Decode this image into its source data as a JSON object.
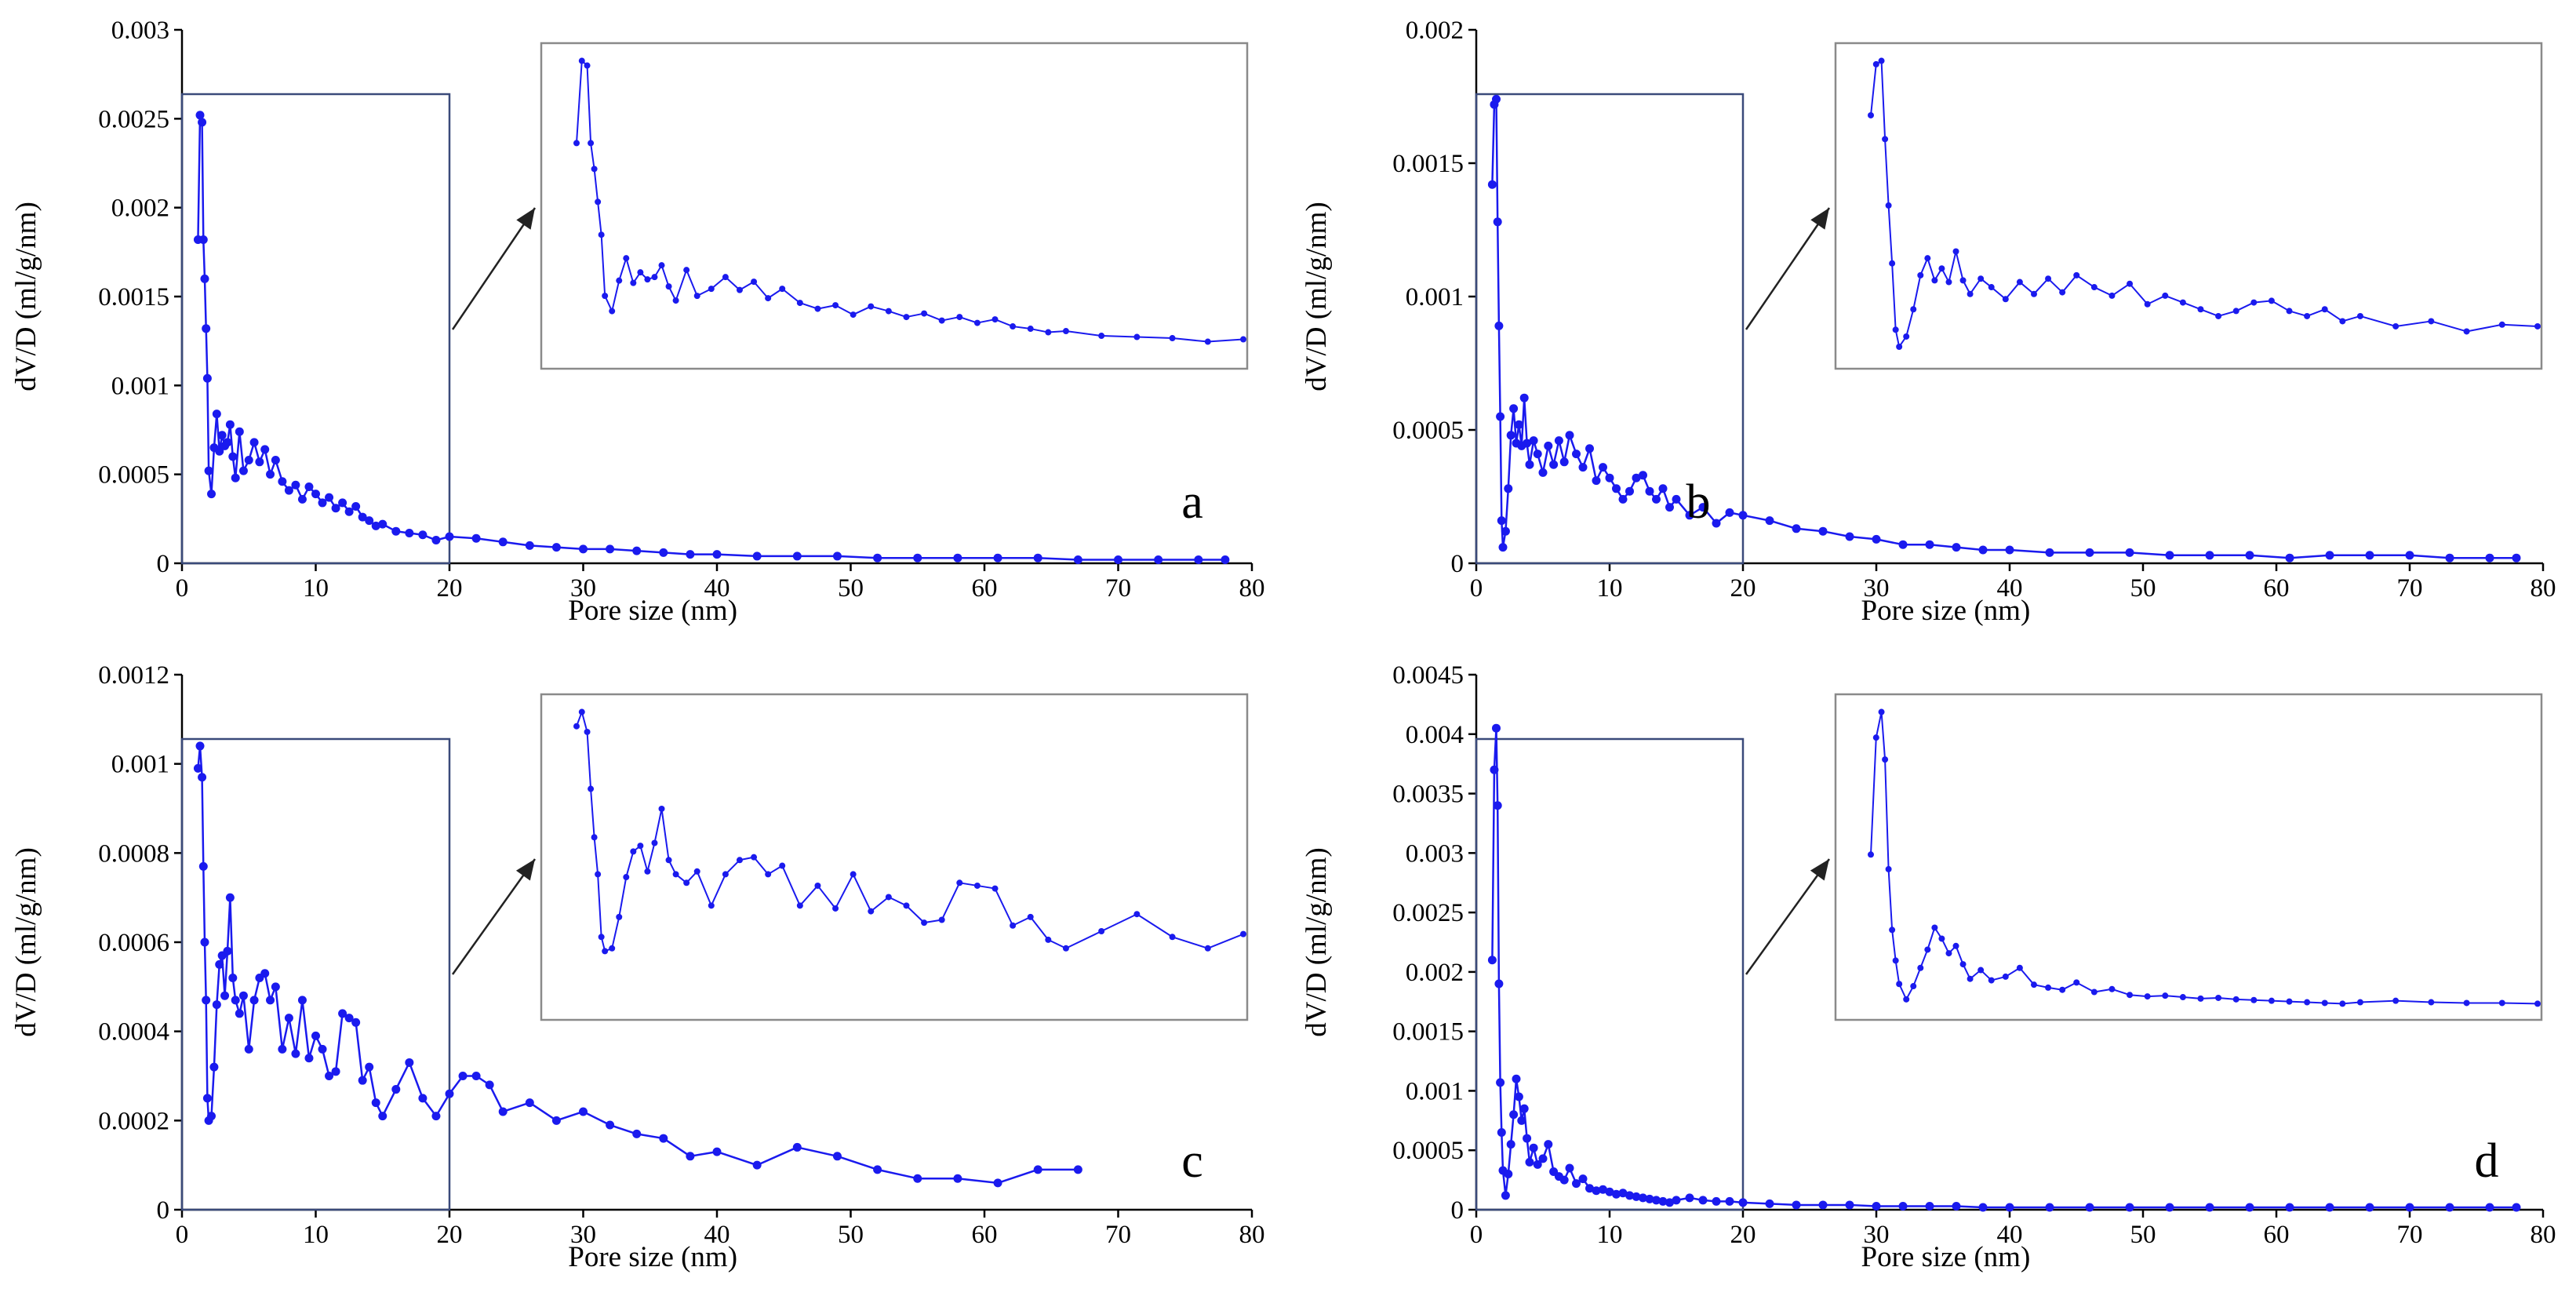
{
  "chart_data": [
    {
      "type": "line",
      "panel_label": "a",
      "xlabel": "Pore size (nm)",
      "ylabel": "dV/D (ml/g/nm)",
      "xlim": [
        0,
        80
      ],
      "ylim": [
        0,
        0.003
      ],
      "xticks": [
        0,
        10,
        20,
        30,
        40,
        50,
        60,
        70,
        80
      ],
      "yticks": [
        0,
        0.0005,
        0.001,
        0.0015,
        0.002,
        0.0025,
        0.003
      ],
      "ytick_labels": [
        "0",
        "0.0005",
        "0.001",
        "0.0015",
        "0.002",
        "0.0025",
        "0.003"
      ],
      "inset_range_x": [
        0,
        20
      ],
      "x": [
        1.2,
        1.35,
        1.5,
        1.6,
        1.7,
        1.8,
        1.9,
        2.0,
        2.2,
        2.4,
        2.6,
        2.8,
        3.0,
        3.2,
        3.4,
        3.6,
        3.8,
        4.0,
        4.3,
        4.6,
        5.0,
        5.4,
        5.8,
        6.2,
        6.6,
        7.0,
        7.5,
        8.0,
        8.5,
        9.0,
        9.5,
        10,
        10.5,
        11,
        11.5,
        12,
        12.5,
        13,
        13.5,
        14,
        14.5,
        15,
        16,
        17,
        18,
        19,
        20,
        22,
        24,
        26,
        28,
        30,
        32,
        34,
        36,
        38,
        40,
        43,
        46,
        49,
        52,
        55,
        58,
        61,
        64,
        67,
        70,
        73,
        76,
        78
      ],
      "y": [
        0.00182,
        0.00252,
        0.00248,
        0.00182,
        0.0016,
        0.00132,
        0.00104,
        0.00052,
        0.00039,
        0.00065,
        0.00084,
        0.00063,
        0.00072,
        0.00066,
        0.00068,
        0.00078,
        0.0006,
        0.00048,
        0.00074,
        0.00052,
        0.00058,
        0.00068,
        0.00057,
        0.00064,
        0.0005,
        0.00058,
        0.00046,
        0.00041,
        0.00044,
        0.00036,
        0.00043,
        0.00039,
        0.00034,
        0.00037,
        0.00031,
        0.00034,
        0.00029,
        0.00032,
        0.00026,
        0.00024,
        0.00021,
        0.00022,
        0.00018,
        0.00017,
        0.00016,
        0.00013,
        0.00015,
        0.00014,
        0.00012,
        0.0001,
        9e-05,
        8e-05,
        8e-05,
        7e-05,
        6e-05,
        5e-05,
        5e-05,
        4e-05,
        4e-05,
        4e-05,
        3e-05,
        3e-05,
        3e-05,
        3e-05,
        3e-05,
        2e-05,
        2e-05,
        2e-05,
        2e-05,
        2e-05
      ]
    },
    {
      "type": "line",
      "panel_label": "b",
      "xlabel": "Pore size (nm)",
      "ylabel": "dV/D (ml/g/nm)",
      "xlim": [
        0,
        80
      ],
      "ylim": [
        0,
        0.002
      ],
      "xticks": [
        0,
        10,
        20,
        30,
        40,
        50,
        60,
        70,
        80
      ],
      "yticks": [
        0,
        0.0005,
        0.001,
        0.0015,
        0.002
      ],
      "ytick_labels": [
        "0",
        "0.0005",
        "0.001",
        "0.0015",
        "0.002"
      ],
      "inset_range_x": [
        0,
        20
      ],
      "x": [
        1.2,
        1.35,
        1.5,
        1.6,
        1.7,
        1.8,
        1.9,
        2.0,
        2.2,
        2.4,
        2.6,
        2.8,
        3.0,
        3.2,
        3.4,
        3.6,
        3.8,
        4.0,
        4.3,
        4.6,
        5.0,
        5.4,
        5.8,
        6.2,
        6.6,
        7.0,
        7.5,
        8.0,
        8.5,
        9.0,
        9.5,
        10,
        10.5,
        11,
        11.5,
        12,
        12.5,
        13,
        13.5,
        14,
        14.5,
        15,
        16,
        17,
        18,
        19,
        20,
        22,
        24,
        26,
        28,
        30,
        32,
        34,
        36,
        38,
        40,
        43,
        46,
        49,
        52,
        55,
        58,
        61,
        64,
        67,
        70,
        73,
        76,
        78
      ],
      "y": [
        0.00142,
        0.00172,
        0.00174,
        0.00128,
        0.00089,
        0.00055,
        0.00016,
        6e-05,
        0.00012,
        0.00028,
        0.00048,
        0.00058,
        0.00045,
        0.00052,
        0.00044,
        0.00062,
        0.00045,
        0.00037,
        0.00046,
        0.00041,
        0.00034,
        0.00044,
        0.00037,
        0.00046,
        0.00038,
        0.00048,
        0.00041,
        0.00036,
        0.00043,
        0.00031,
        0.00036,
        0.00032,
        0.00028,
        0.00024,
        0.00027,
        0.00032,
        0.00033,
        0.00027,
        0.00024,
        0.00028,
        0.00021,
        0.00024,
        0.00018,
        0.00021,
        0.00015,
        0.00019,
        0.00018,
        0.00016,
        0.00013,
        0.00012,
        0.0001,
        9e-05,
        7e-05,
        7e-05,
        6e-05,
        5e-05,
        5e-05,
        4e-05,
        4e-05,
        4e-05,
        3e-05,
        3e-05,
        3e-05,
        2e-05,
        3e-05,
        3e-05,
        3e-05,
        2e-05,
        2e-05,
        2e-05
      ]
    },
    {
      "type": "line",
      "panel_label": "c",
      "xlabel": "Pore size (nm)",
      "ylabel": "dV/D (ml/g/nm)",
      "xlim": [
        0,
        80
      ],
      "ylim": [
        0,
        0.0012
      ],
      "xticks": [
        0,
        10,
        20,
        30,
        40,
        50,
        60,
        70,
        80
      ],
      "yticks": [
        0,
        0.0002,
        0.0004,
        0.0006,
        0.0008,
        0.001,
        0.0012
      ],
      "ytick_labels": [
        "0",
        "0.0002",
        "0.0004",
        "0.0006",
        "0.0008",
        "0.001",
        "0.0012"
      ],
      "inset_range_x": [
        0,
        20
      ],
      "x": [
        1.2,
        1.35,
        1.5,
        1.6,
        1.7,
        1.8,
        1.9,
        2.0,
        2.2,
        2.4,
        2.6,
        2.8,
        3.0,
        3.2,
        3.4,
        3.6,
        3.8,
        4.0,
        4.3,
        4.6,
        5.0,
        5.4,
        5.8,
        6.2,
        6.6,
        7.0,
        7.5,
        8.0,
        8.5,
        9.0,
        9.5,
        10,
        10.5,
        11,
        11.5,
        12,
        12.5,
        13,
        13.5,
        14,
        14.5,
        15,
        16,
        17,
        18,
        19,
        20,
        21,
        22,
        23,
        24,
        26,
        28,
        30,
        32,
        34,
        36,
        38,
        40,
        43,
        46,
        49,
        52,
        55,
        58,
        61,
        64,
        67
      ],
      "y": [
        0.00099,
        0.00104,
        0.00097,
        0.00077,
        0.0006,
        0.00047,
        0.00025,
        0.0002,
        0.00021,
        0.00032,
        0.00046,
        0.00055,
        0.00057,
        0.00048,
        0.00058,
        0.0007,
        0.00052,
        0.00047,
        0.00044,
        0.00048,
        0.00036,
        0.00047,
        0.00052,
        0.00053,
        0.00047,
        0.0005,
        0.00036,
        0.00043,
        0.00035,
        0.00047,
        0.00034,
        0.00039,
        0.00036,
        0.0003,
        0.00031,
        0.00044,
        0.00043,
        0.00042,
        0.00029,
        0.00032,
        0.00024,
        0.00021,
        0.00027,
        0.00033,
        0.00025,
        0.00021,
        0.00026,
        0.0003,
        0.0003,
        0.00028,
        0.00022,
        0.00024,
        0.0002,
        0.00022,
        0.00019,
        0.00017,
        0.00016,
        0.00012,
        0.00013,
        0.0001,
        0.00014,
        0.00012,
        9e-05,
        7e-05,
        7e-05,
        6e-05,
        9e-05,
        9e-05
      ]
    },
    {
      "type": "line",
      "panel_label": "d",
      "xlabel": "Pore size (nm)",
      "ylabel": "dV/D (ml/g/nm)",
      "xlim": [
        0,
        80
      ],
      "ylim": [
        0,
        0.0045
      ],
      "xticks": [
        0,
        10,
        20,
        30,
        40,
        50,
        60,
        70,
        80
      ],
      "yticks": [
        0,
        0.0005,
        0.001,
        0.0015,
        0.002,
        0.0025,
        0.003,
        0.0035,
        0.004,
        0.0045
      ],
      "ytick_labels": [
        "0",
        "0.0005",
        "0.001",
        "0.0015",
        "0.002",
        "0.0025",
        "0.003",
        "0.0035",
        "0.004",
        "0.0045"
      ],
      "inset_range_x": [
        0,
        20
      ],
      "x": [
        1.2,
        1.35,
        1.5,
        1.6,
        1.7,
        1.8,
        1.9,
        2.0,
        2.2,
        2.4,
        2.6,
        2.8,
        3.0,
        3.2,
        3.4,
        3.6,
        3.8,
        4.0,
        4.3,
        4.6,
        5.0,
        5.4,
        5.8,
        6.2,
        6.6,
        7.0,
        7.5,
        8.0,
        8.5,
        9.0,
        9.5,
        10,
        10.5,
        11,
        11.5,
        12,
        12.5,
        13,
        13.5,
        14,
        14.5,
        15,
        16,
        17,
        18,
        19,
        20,
        22,
        24,
        26,
        28,
        30,
        32,
        34,
        36,
        38,
        40,
        43,
        46,
        49,
        52,
        55,
        58,
        61,
        64,
        67,
        70,
        73,
        76,
        78
      ],
      "y": [
        0.0021,
        0.0037,
        0.00405,
        0.0034,
        0.0019,
        0.00107,
        0.00065,
        0.00033,
        0.00012,
        0.0003,
        0.00055,
        0.0008,
        0.0011,
        0.00095,
        0.00075,
        0.00085,
        0.0006,
        0.0004,
        0.00052,
        0.00038,
        0.00043,
        0.00055,
        0.00032,
        0.00028,
        0.00025,
        0.00035,
        0.00022,
        0.00026,
        0.00018,
        0.00016,
        0.00017,
        0.00015,
        0.00013,
        0.00014,
        0.00012,
        0.00011,
        0.0001,
        9e-05,
        8e-05,
        7e-05,
        6e-05,
        8e-05,
        0.0001,
        8e-05,
        7e-05,
        7e-05,
        6e-05,
        5e-05,
        4e-05,
        4e-05,
        4e-05,
        3e-05,
        3e-05,
        3e-05,
        3e-05,
        2e-05,
        2e-05,
        2e-05,
        2e-05,
        2e-05,
        2e-05,
        2e-05,
        2e-05,
        2e-05,
        2e-05,
        2e-05,
        2e-05,
        2e-05,
        2e-05,
        2e-05
      ]
    }
  ]
}
